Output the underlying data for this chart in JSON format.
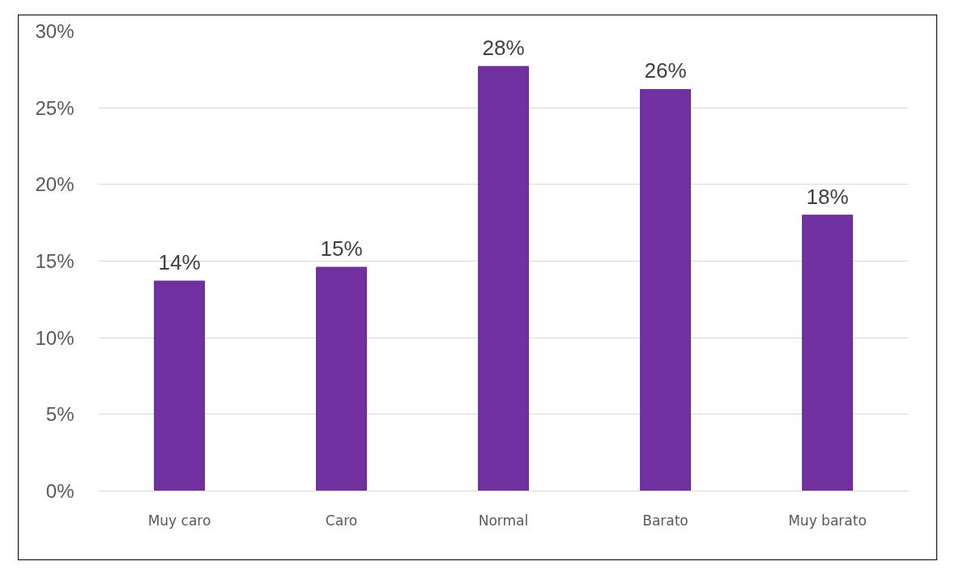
{
  "chart_data": {
    "type": "bar",
    "categories": [
      "Muy caro",
      "Caro",
      "Normal",
      "Barato",
      "Muy barato"
    ],
    "values": [
      13.7,
      14.6,
      27.7,
      26.2,
      18.0
    ],
    "value_labels": [
      "14%",
      "15%",
      "28%",
      "26%",
      "18%"
    ],
    "color": "#7030a0",
    "ylim": [
      0,
      30
    ],
    "yticks": [
      {
        "value": 0,
        "label": "0%"
      },
      {
        "value": 5,
        "label": "5%"
      },
      {
        "value": 10,
        "label": "10%"
      },
      {
        "value": 15,
        "label": "15%"
      },
      {
        "value": 20,
        "label": "20%"
      },
      {
        "value": 25,
        "label": "25%"
      },
      {
        "value": 30,
        "label": "30%"
      }
    ],
    "grid": "y"
  }
}
